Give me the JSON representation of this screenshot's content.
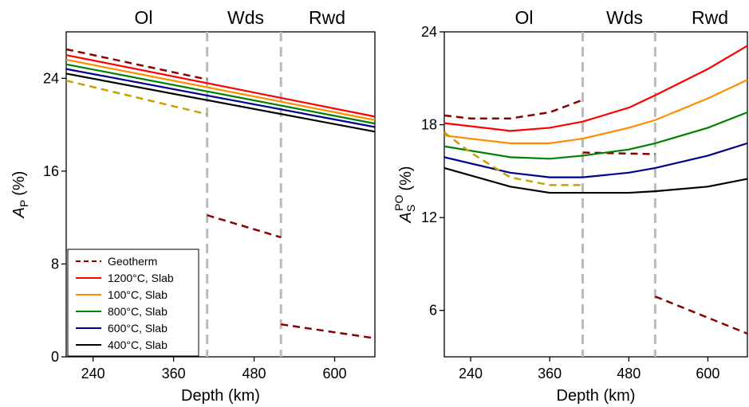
{
  "chart_data": [
    {
      "type": "line",
      "xlabel": "Depth (km)",
      "ylabel": "A",
      "ylabel_sub": "P",
      "ylabel_unit": "(%)",
      "annotations": [
        "Ol",
        "Wds",
        "Rwd"
      ],
      "boundaries": [
        410,
        520
      ],
      "xlim": [
        200,
        660
      ],
      "xticks": [
        240,
        360,
        480,
        600
      ],
      "ylim": [
        0,
        28
      ],
      "yticks": [
        0,
        8,
        16,
        24
      ],
      "legend": "lower left",
      "series": [
        {
          "name": "Geotherm",
          "color": "#8b0000",
          "dashed": true,
          "x": [
            200,
            410,
            null,
            410,
            520,
            null,
            520,
            660
          ],
          "values": [
            26.5,
            23.9,
            null,
            12.2,
            10.3,
            null,
            2.8,
            1.6
          ]
        },
        {
          "name": "1200°C, Slab",
          "color": "#ff0000",
          "x": [
            200,
            660
          ],
          "values": [
            26.0,
            20.7
          ]
        },
        {
          "name": "100°C, Slab",
          "color": "#ff8c00",
          "x": [
            200,
            660
          ],
          "values": [
            25.6,
            20.4
          ]
        },
        {
          "name": "800°C, Slab",
          "color": "#008000",
          "x": [
            200,
            660
          ],
          "values": [
            25.2,
            20.1
          ]
        },
        {
          "name": "600°C, Slab",
          "color": "#00008b",
          "x": [
            200,
            660
          ],
          "values": [
            24.8,
            19.8
          ]
        },
        {
          "name": "400°C, Slab",
          "color": "#000000",
          "x": [
            200,
            660
          ],
          "values": [
            24.4,
            19.4
          ]
        },
        {
          "color": "#c8a000",
          "dashed": true,
          "x": [
            200,
            410
          ],
          "values": [
            23.8,
            20.9
          ]
        }
      ]
    },
    {
      "type": "line",
      "xlabel": "Depth (km)",
      "ylabel": "A",
      "ylabel_sub": "S",
      "ylabel_sup": "PO",
      "ylabel_unit": "(%)",
      "annotations": [
        "Ol",
        "Wds",
        "Rwd"
      ],
      "boundaries": [
        410,
        520
      ],
      "xlim": [
        200,
        660
      ],
      "xticks": [
        240,
        360,
        480,
        600
      ],
      "ylim": [
        3,
        24
      ],
      "yticks": [
        6,
        12,
        18,
        24
      ],
      "series": [
        {
          "color": "#8b0000",
          "dashed": true,
          "x": [
            200,
            240,
            300,
            360,
            410,
            null,
            410,
            520,
            null,
            520,
            660
          ],
          "values": [
            18.6,
            18.4,
            18.4,
            18.8,
            19.6,
            null,
            16.2,
            16.1,
            null,
            6.9,
            4.5
          ]
        },
        {
          "color": "#ff0000",
          "x": [
            200,
            300,
            360,
            410,
            480,
            520,
            600,
            660
          ],
          "values": [
            18.1,
            17.6,
            17.8,
            18.2,
            19.1,
            19.9,
            21.6,
            23.1
          ]
        },
        {
          "color": "#ff8c00",
          "x": [
            200,
            300,
            360,
            410,
            480,
            520,
            600,
            660
          ],
          "values": [
            17.3,
            16.8,
            16.8,
            17.1,
            17.8,
            18.3,
            19.7,
            20.9
          ]
        },
        {
          "color": "#008000",
          "x": [
            200,
            300,
            360,
            410,
            480,
            520,
            600,
            660
          ],
          "values": [
            16.6,
            15.9,
            15.8,
            16.0,
            16.4,
            16.8,
            17.8,
            18.8
          ]
        },
        {
          "color": "#00008b",
          "x": [
            200,
            300,
            360,
            410,
            480,
            520,
            600,
            660
          ],
          "values": [
            15.9,
            14.9,
            14.6,
            14.6,
            14.9,
            15.2,
            16.0,
            16.8
          ]
        },
        {
          "color": "#000000",
          "x": [
            200,
            300,
            360,
            410,
            480,
            520,
            600,
            660
          ],
          "values": [
            15.2,
            14.0,
            13.6,
            13.6,
            13.6,
            13.7,
            14.0,
            14.5
          ]
        },
        {
          "color": "#c8a000",
          "dashed": true,
          "x": [
            200,
            240,
            300,
            360,
            410
          ],
          "values": [
            17.5,
            16.2,
            14.6,
            14.1,
            14.1
          ]
        }
      ]
    }
  ]
}
